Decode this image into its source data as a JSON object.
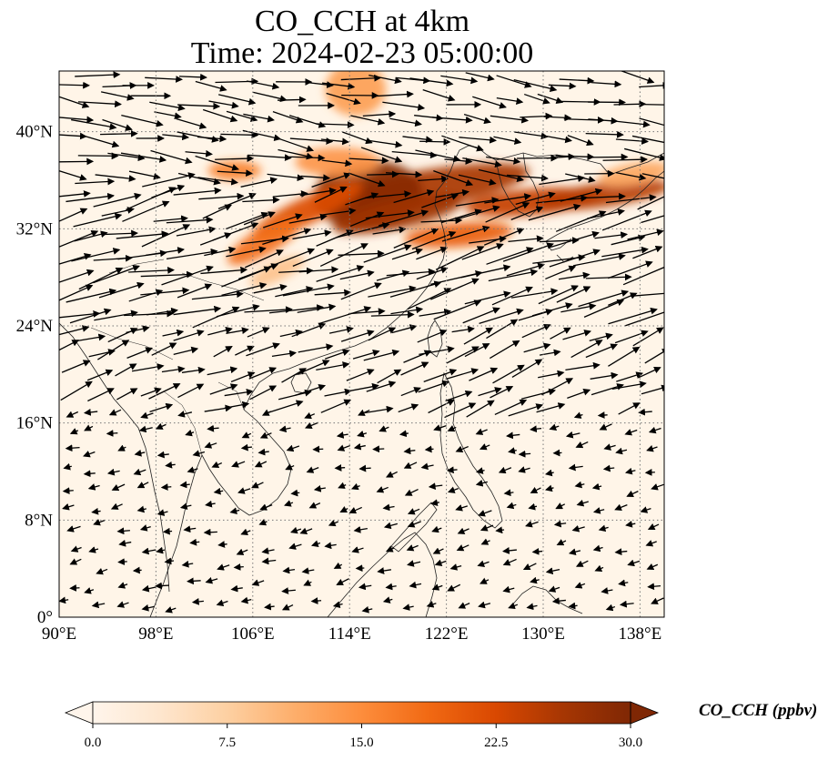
{
  "title": {
    "line1": "CO_CCH at 4km",
    "line2": "Time: 2024-02-23 05:00:00"
  },
  "map": {
    "extent": {
      "lon": [
        90,
        140
      ],
      "lat": [
        0,
        45
      ]
    },
    "x_ticks": [
      {
        "value": 90,
        "label": "90°E"
      },
      {
        "value": 98,
        "label": "98°E"
      },
      {
        "value": 106,
        "label": "106°E"
      },
      {
        "value": 114,
        "label": "114°E"
      },
      {
        "value": 122,
        "label": "122°E"
      },
      {
        "value": 130,
        "label": "130°E"
      },
      {
        "value": 138,
        "label": "138°E"
      }
    ],
    "y_ticks": [
      {
        "value": 0,
        "label": "0°"
      },
      {
        "value": 8,
        "label": "8°N"
      },
      {
        "value": 16,
        "label": "16°N"
      },
      {
        "value": 24,
        "label": "24°N"
      },
      {
        "value": 32,
        "label": "32°N"
      },
      {
        "value": 40,
        "label": "40°N"
      }
    ],
    "gridlines": "dotted",
    "field_background": "#fff5e8",
    "plumes": [
      {
        "lon": 120,
        "lat": 35.2,
        "rlon": 9,
        "rlat": 1.6,
        "angle": 10,
        "level": 26
      },
      {
        "lon": 115.5,
        "lat": 34.8,
        "rlon": 4.5,
        "rlat": 2.8,
        "angle": 5,
        "level": 29
      },
      {
        "lon": 118,
        "lat": 33.2,
        "rlon": 5.5,
        "rlat": 1.2,
        "angle": 12,
        "level": 27
      },
      {
        "lon": 110.5,
        "lat": 33.5,
        "rlon": 5,
        "rlat": 1.1,
        "angle": 25,
        "level": 22
      },
      {
        "lon": 107,
        "lat": 31,
        "rlon": 3.5,
        "rlat": 1.1,
        "angle": 30,
        "level": 18
      },
      {
        "lon": 104.5,
        "lat": 36.8,
        "rlon": 2.2,
        "rlat": 0.8,
        "angle": 0,
        "level": 16
      },
      {
        "lon": 113,
        "lat": 37.5,
        "rlon": 3.5,
        "rlat": 1.2,
        "angle": 0,
        "level": 14
      },
      {
        "lon": 114.5,
        "lat": 43.5,
        "rlon": 2.5,
        "rlat": 2.2,
        "angle": 0,
        "level": 13
      },
      {
        "lon": 123,
        "lat": 31.5,
        "rlon": 4.5,
        "rlat": 1.0,
        "angle": 5,
        "level": 20
      },
      {
        "lon": 129,
        "lat": 34.2,
        "rlon": 5.5,
        "rlat": 1.1,
        "angle": 5,
        "level": 24
      },
      {
        "lon": 135,
        "lat": 34.8,
        "rlon": 5.5,
        "rlat": 1.0,
        "angle": 8,
        "level": 25
      },
      {
        "lon": 137.5,
        "lat": 36.5,
        "rlon": 3,
        "rlat": 0.9,
        "angle": 10,
        "level": 12
      },
      {
        "lon": 108,
        "lat": 28.5,
        "rlon": 2.5,
        "rlat": 0.8,
        "angle": 25,
        "level": 9
      }
    ],
    "wind_regimes": [
      {
        "lat_min": 36,
        "lat_max": 45,
        "direction_deg": -8,
        "speed": 1.0
      },
      {
        "lat_min": 24,
        "lat_max": 36,
        "direction_deg": 14,
        "speed": 1.2
      },
      {
        "lat_min": 17,
        "lat_max": 24,
        "direction_deg": 20,
        "speed": 0.8
      },
      {
        "lat_min": 0,
        "lat_max": 17,
        "direction_deg": 195,
        "speed": 0.3
      }
    ]
  },
  "colorbar": {
    "label": "CO_CCH (ppbv)",
    "min": 0,
    "max": 30,
    "ticks": [
      "0.0",
      "7.5",
      "15.0",
      "22.5",
      "30.0"
    ],
    "extend": "both",
    "colormap": [
      "#fff5eb",
      "#fee6ce",
      "#fdd0a2",
      "#fdae6b",
      "#fd8d3c",
      "#f16913",
      "#d94801",
      "#a63603",
      "#7f2704"
    ]
  }
}
